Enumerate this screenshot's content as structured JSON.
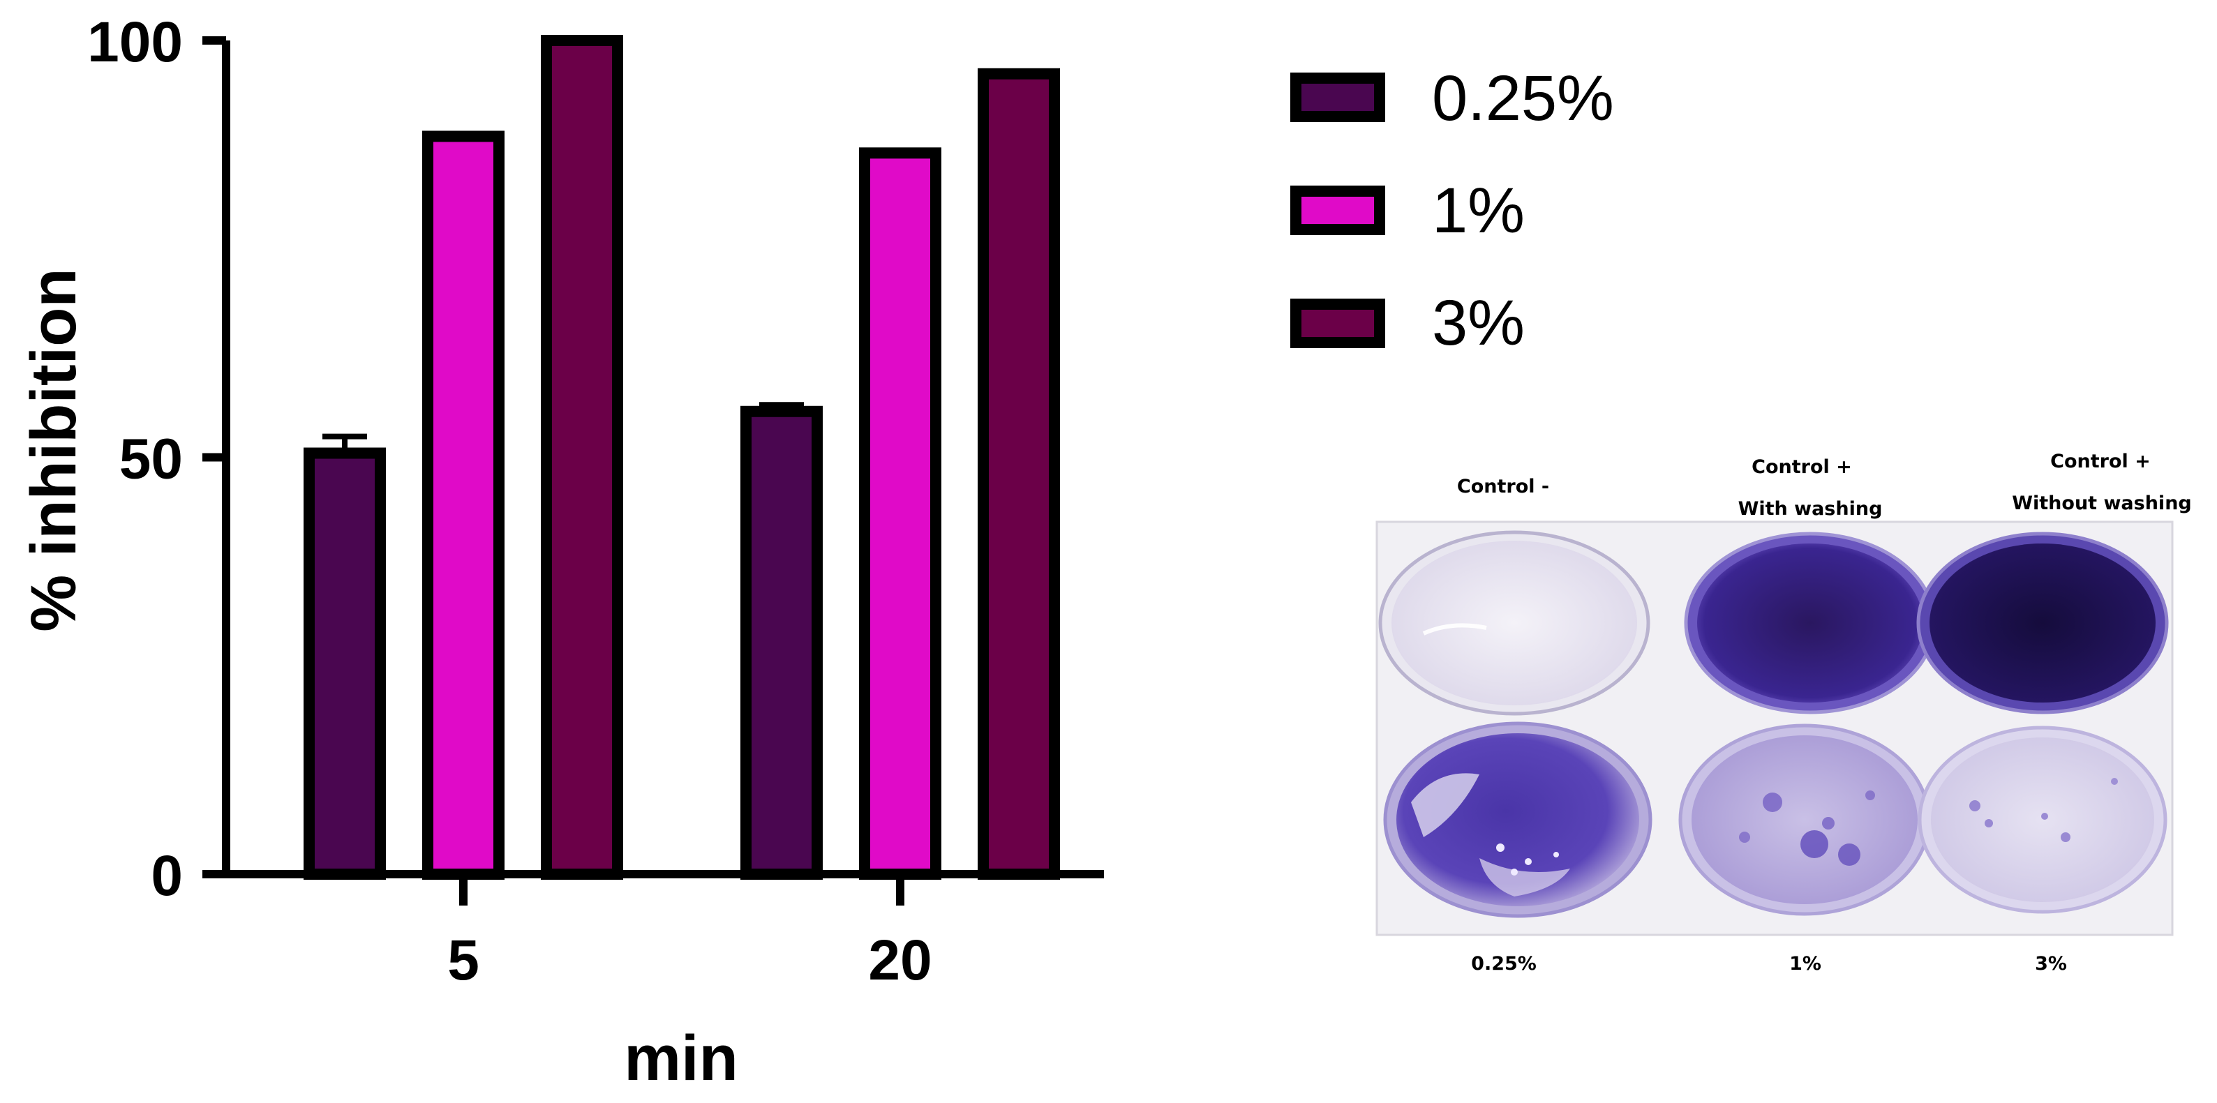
{
  "chart_data": {
    "type": "bar",
    "categories": [
      "5",
      "20"
    ],
    "series": [
      {
        "name": "0.25%",
        "color": "#4a0650",
        "values": [
          50.5,
          55.5
        ],
        "errors": [
          2.0,
          0.8
        ]
      },
      {
        "name": "1%",
        "color": "#e00ac8",
        "values": [
          88.5,
          86.5
        ],
        "errors": [
          0.3,
          0.3
        ]
      },
      {
        "name": "3%",
        "color": "#6b0048",
        "values": [
          100,
          96
        ],
        "errors": [
          0,
          0.3
        ]
      }
    ],
    "title": "",
    "xlabel": "min",
    "ylabel": "% inhibition",
    "ylim": [
      0,
      100
    ],
    "yticks": [
      0,
      50,
      100
    ],
    "xticks": [
      "5",
      "20"
    ],
    "grid": false,
    "legend_position": "top-right"
  },
  "photo": {
    "top_labels": [
      {
        "line1": "Control -",
        "line2": ""
      },
      {
        "line1": "Control +",
        "line2": "With washing"
      },
      {
        "line1": "Control +",
        "line2": "Without washing"
      }
    ],
    "bottom_labels": [
      "0.25%",
      "1%",
      "3%"
    ]
  }
}
